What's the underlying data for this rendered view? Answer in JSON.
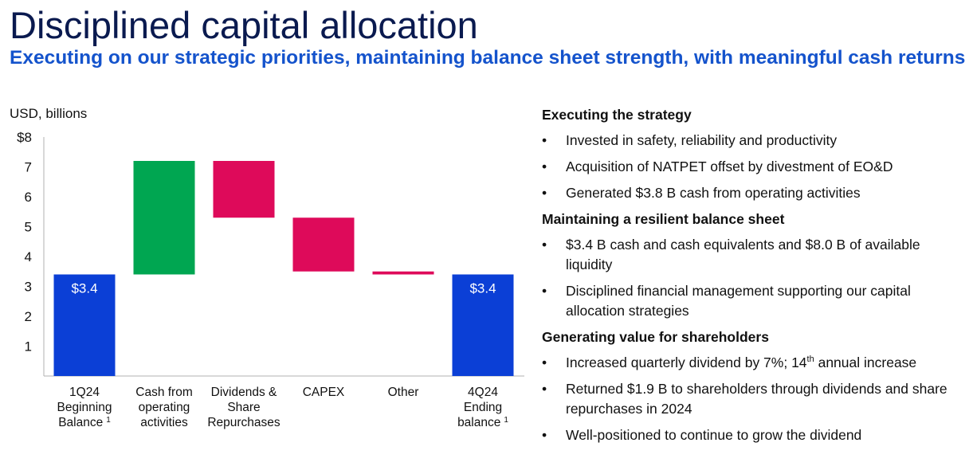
{
  "header": {
    "title": "Disciplined capital allocation",
    "subtitle": "Executing on our strategic priorities, maintaining balance sheet strength, with meaningful cash returns"
  },
  "chart_data": {
    "type": "bar",
    "subtype": "waterfall",
    "unit_label": "USD, billions",
    "ylim": [
      0,
      8
    ],
    "yticks": [
      "1",
      "2",
      "3",
      "4",
      "5",
      "6",
      "7",
      "$8"
    ],
    "grid": false,
    "legend": "none",
    "bars": [
      {
        "label_lines": [
          "1Q24",
          "Beginning",
          "Balance"
        ],
        "footnote": "1",
        "start": 0,
        "end": 3.4,
        "value_label": "$3.4",
        "color": "#0b3fd6"
      },
      {
        "label_lines": [
          "Cash from",
          "operating",
          "activities"
        ],
        "footnote": "",
        "start": 3.4,
        "end": 7.2,
        "value_label": "",
        "color": "#00a651"
      },
      {
        "label_lines": [
          "Dividends &",
          "Share",
          "Repurchases"
        ],
        "footnote": "",
        "start": 7.2,
        "end": 5.3,
        "value_label": "",
        "color": "#de0a5a"
      },
      {
        "label_lines": [
          "CAPEX"
        ],
        "footnote": "",
        "start": 5.3,
        "end": 3.5,
        "value_label": "",
        "color": "#de0a5a"
      },
      {
        "label_lines": [
          "Other"
        ],
        "footnote": "",
        "start": 3.5,
        "end": 3.4,
        "value_label": "",
        "color": "#de0a5a"
      },
      {
        "label_lines": [
          "4Q24",
          "Ending",
          "balance"
        ],
        "footnote": "1",
        "start": 0,
        "end": 3.4,
        "value_label": "$3.4",
        "color": "#0b3fd6"
      }
    ]
  },
  "sections": [
    {
      "heading": "Executing the strategy",
      "items": [
        {
          "text": "Invested in safety, reliability and productivity"
        },
        {
          "text": "Acquisition of NATPET offset by divestment of EO&D"
        },
        {
          "text": "Generated $3.8 B cash from operating activities"
        }
      ]
    },
    {
      "heading": "Maintaining a resilient balance sheet",
      "items": [
        {
          "text": "$3.4 B cash and cash equivalents and $8.0 B of available liquidity"
        },
        {
          "text": "Disciplined financial management supporting our capital allocation strategies"
        }
      ]
    },
    {
      "heading": "Generating value for shareholders",
      "items": [
        {
          "text": "Increased quarterly dividend by 7%; 14",
          "sup": "th",
          "after": " annual increase"
        },
        {
          "text": "Returned $1.9 B to shareholders through dividends and share repurchases in 2024"
        },
        {
          "text": "Well-positioned to continue to grow the dividend"
        }
      ]
    }
  ],
  "bullet_char": "•"
}
